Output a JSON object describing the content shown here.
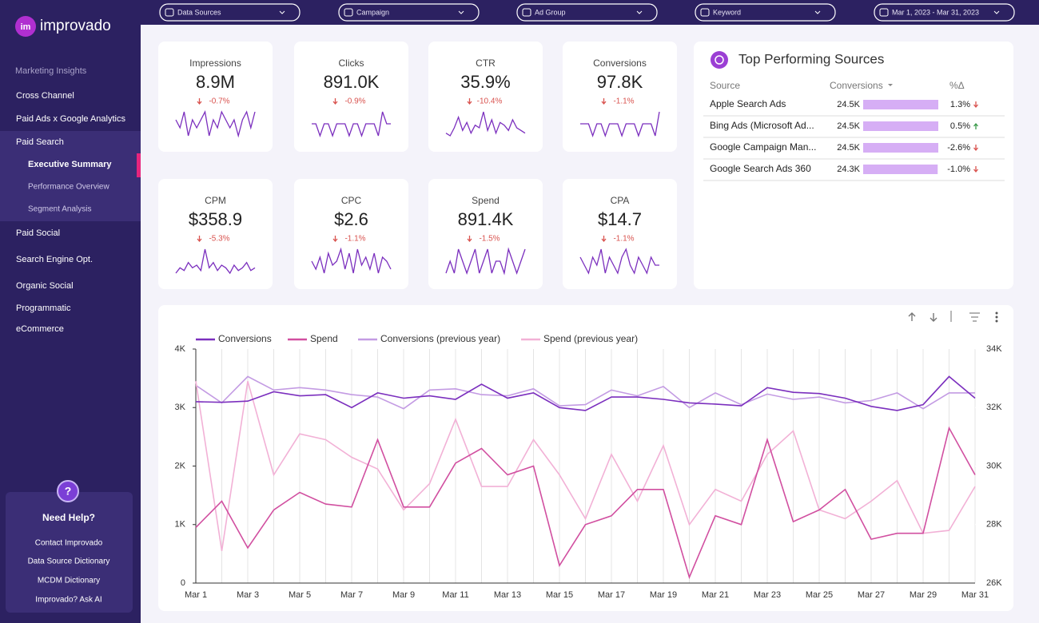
{
  "logo": "improvado",
  "filters": [
    "Data Sources",
    "Campaign",
    "Ad Group",
    "Keyword",
    "Mar 1, 2023 - Mar 31, 2023"
  ],
  "nav": {
    "heading": "Marketing Insights",
    "items": [
      "Cross Channel",
      "Paid Ads x Google Analytics",
      "Paid Search"
    ],
    "sub_items": [
      "Executive Summary",
      "Performance Overview",
      "Segment Analysis"
    ],
    "active_sub": 0,
    "items_after": [
      "Paid Social",
      "Search Engine Opt.",
      "Organic Social",
      "Programmatic",
      "eCommerce"
    ]
  },
  "help": {
    "icon": "?",
    "title": "Need Help?",
    "links": [
      "Contact Improvado",
      "Data Source Dictionary",
      "MCDM Dictionary",
      "Improvado? Ask AI"
    ]
  },
  "kpis": [
    {
      "label": "Impressions",
      "value": "8.9M",
      "change": "-0.7%",
      "spark": [
        5,
        4,
        6,
        3,
        5,
        4,
        5,
        6,
        3,
        5,
        4,
        6,
        5,
        4,
        5,
        3,
        5,
        6,
        4,
        6
      ]
    },
    {
      "label": "Clicks",
      "value": "891.0K",
      "change": "-0.9%",
      "spark": [
        5,
        5,
        4,
        5,
        5,
        4,
        5,
        5,
        5,
        4,
        5,
        5,
        4,
        5,
        5,
        5,
        4,
        6,
        5,
        5
      ]
    },
    {
      "label": "CTR",
      "value": "35.9%",
      "change": "-10.4%",
      "spark": [
        3,
        2,
        5,
        9,
        4,
        7,
        3,
        6,
        5,
        11,
        4,
        8,
        3,
        7,
        6,
        4,
        8,
        5,
        4,
        3
      ]
    },
    {
      "label": "Conversions",
      "value": "97.8K",
      "change": "-1.1%",
      "spark": [
        5,
        5,
        5,
        4,
        5,
        5,
        4,
        5,
        5,
        5,
        4,
        5,
        5,
        5,
        4,
        5,
        5,
        5,
        4,
        6
      ]
    },
    {
      "label": "CPM",
      "value": "$358.9",
      "change": "-5.3%",
      "spark": [
        3,
        5,
        4,
        7,
        5,
        6,
        4,
        12,
        5,
        7,
        4,
        6,
        5,
        3,
        6,
        4,
        5,
        7,
        4,
        5
      ]
    },
    {
      "label": "CPC",
      "value": "$2.6",
      "change": "-1.1%",
      "spark": [
        5,
        3,
        6,
        2,
        7,
        4,
        5,
        8,
        3,
        7,
        2,
        8,
        4,
        6,
        3,
        7,
        2,
        6,
        5,
        3
      ]
    },
    {
      "label": "Spend",
      "value": "891.4K",
      "change": "-1.5%",
      "spark": [
        4,
        5,
        4,
        6,
        5,
        4,
        5,
        6,
        4,
        5,
        6,
        4,
        5,
        5,
        4,
        6,
        5,
        4,
        5,
        6
      ]
    },
    {
      "label": "CPA",
      "value": "$14.7",
      "change": "-1.1%",
      "spark": [
        6,
        5,
        4,
        6,
        5,
        7,
        4,
        6,
        5,
        4,
        6,
        7,
        5,
        4,
        6,
        5,
        4,
        6,
        5,
        5
      ]
    }
  ],
  "top_sources": {
    "title": "Top Performing Sources",
    "columns": [
      "Source",
      "Conversions",
      "%Δ"
    ],
    "rows": [
      {
        "source": "Apple Search Ads",
        "conversions": 24500,
        "conversions_label": "24.5K",
        "change": "1.3%",
        "trend": "down"
      },
      {
        "source": "Bing Ads (Microsoft Ad...",
        "conversions": 24500,
        "conversions_label": "24.5K",
        "change": "0.5%",
        "trend": "up"
      },
      {
        "source": "Google Campaign Man...",
        "conversions": 24500,
        "conversions_label": "24.5K",
        "change": "-2.6%",
        "trend": "down"
      },
      {
        "source": "Google Search Ads 360",
        "conversions": 24300,
        "conversions_label": "24.3K",
        "change": "-1.0%",
        "trend": "down"
      }
    ]
  },
  "chart": {
    "type": "line",
    "categories": [
      "Mar 1",
      null,
      "Mar 3",
      null,
      "Mar 5",
      null,
      "Mar 7",
      null,
      "Mar 9",
      null,
      "Mar 11",
      null,
      "Mar 13",
      null,
      "Mar 15",
      null,
      "Mar 17",
      null,
      "Mar 19",
      null,
      "Mar 21",
      null,
      "Mar 23",
      null,
      "Mar 25",
      null,
      "Mar 27",
      null,
      "Mar 29",
      null,
      "Mar 31"
    ],
    "series": [
      {
        "name": "Conversions",
        "color": "#7b2fbe",
        "axis": "y",
        "values": [
          3100,
          3090,
          3110,
          3270,
          3200,
          3220,
          3000,
          3250,
          3160,
          3200,
          3140,
          3400,
          3160,
          3250,
          3000,
          2950,
          3180,
          3180,
          3140,
          3080,
          3060,
          3030,
          3340,
          3260,
          3240,
          3160,
          3020,
          2950,
          3050,
          3530,
          3160
        ]
      },
      {
        "name": "Spend",
        "color": "#d14fa0",
        "axis": "y2",
        "values": [
          27900,
          28800,
          27200,
          28500,
          29100,
          28700,
          28600,
          30900,
          28600,
          28600,
          30100,
          30600,
          29700,
          30000,
          26600,
          28000,
          28300,
          29200,
          29200,
          26200,
          28300,
          28000,
          30900,
          28100,
          28500,
          29200,
          27500,
          27700,
          27700,
          31300,
          29700
        ]
      },
      {
        "name": "Conversions (previous year)",
        "color": "#c39be3",
        "axis": "y",
        "values": [
          3380,
          3080,
          3530,
          3300,
          3340,
          3300,
          3220,
          3180,
          2980,
          3300,
          3320,
          3220,
          3200,
          3320,
          3030,
          3050,
          3300,
          3200,
          3360,
          3000,
          3250,
          3050,
          3230,
          3140,
          3180,
          3080,
          3120,
          3250,
          2980,
          3250,
          3250
        ]
      },
      {
        "name": "Spend (previous year)",
        "color": "#f2b1d6",
        "axis": "y2",
        "values": [
          32900,
          27100,
          32900,
          29700,
          31100,
          30900,
          30300,
          29900,
          28500,
          29400,
          31600,
          29300,
          29300,
          30900,
          29700,
          28200,
          30400,
          28800,
          30700,
          28000,
          29200,
          28800,
          30400,
          31200,
          28500,
          28200,
          28800,
          29500,
          27700,
          27800,
          29300
        ]
      }
    ],
    "ylim": [
      0,
      4000
    ],
    "yticks": [
      0,
      {
        "value": 1000,
        "label": "1K"
      },
      {
        "value": 2000,
        "label": "2K"
      },
      {
        "value": 3000,
        "label": "3K"
      },
      {
        "value": 4000,
        "label": "4K"
      }
    ],
    "y2lim": [
      26000,
      34000
    ],
    "y2ticks": [
      {
        "value": 26000,
        "label": "26K"
      },
      {
        "value": 28000,
        "label": "28K"
      },
      {
        "value": 30000,
        "label": "30K"
      },
      {
        "value": 32000,
        "label": "32K"
      },
      {
        "value": 34000,
        "label": "34K"
      }
    ],
    "grid": true
  }
}
